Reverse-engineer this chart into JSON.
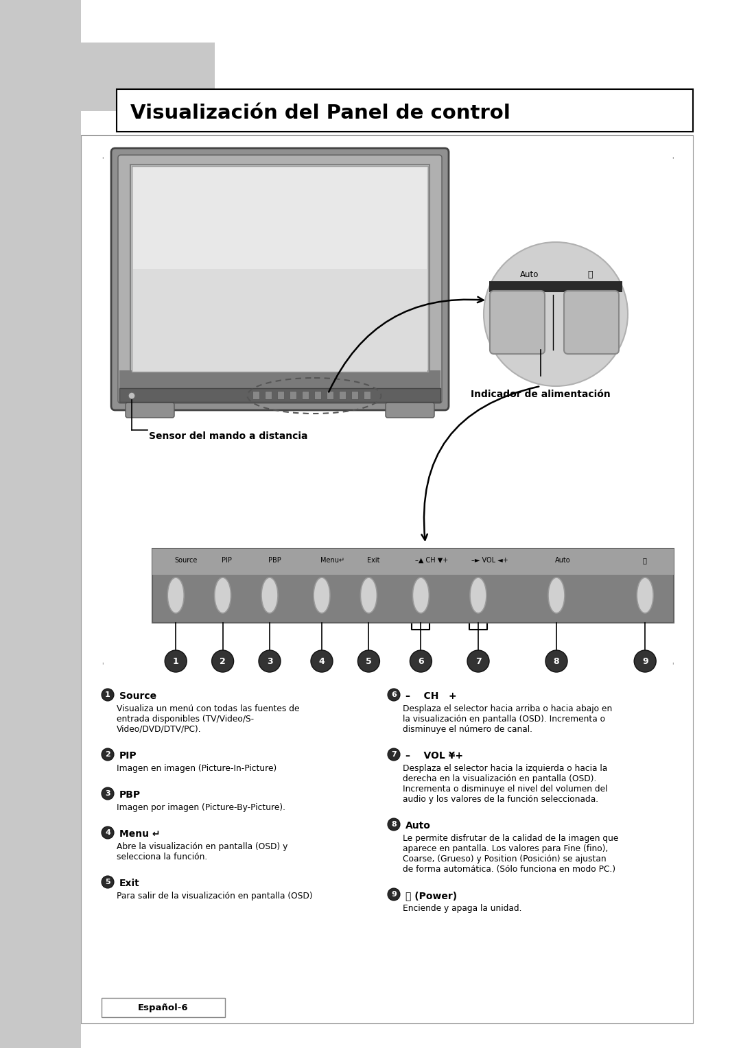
{
  "title": "Visualización del Panel de control",
  "bg_color": "#ffffff",
  "sidebar_color": "#c8c8c8",
  "items_left": [
    {
      "num": "1",
      "label": "Source",
      "desc": "Visualiza un menú con todas las fuentes de\nentrada disponibles (TV/Video/S-\nVideo/DVD/DTV/PC)."
    },
    {
      "num": "2",
      "label": "PIP",
      "desc": "Imagen en imagen (Picture-In-Picture)"
    },
    {
      "num": "3",
      "label": "PBP",
      "desc": "Imagen por imagen (Picture-By-Picture)."
    },
    {
      "num": "4",
      "label": "Menu ↵",
      "desc": "Abre la visualización en pantalla (OSD) y\nselecciona la función."
    },
    {
      "num": "5",
      "label": "Exit",
      "desc": "Para salir de la visualización en pantalla (OSD)"
    }
  ],
  "items_right": [
    {
      "num": "6",
      "label": "–    CH   +",
      "desc": "Desplaza el selector hacia arriba o hacia abajo en\nla visualización en pantalla (OSD). Incrementa o\ndisminuye el número de canal."
    },
    {
      "num": "7",
      "label": "–    VOL ¥+",
      "desc": "Desplaza el selector hacia la izquierda o hacia la\nderecha en la visualización en pantalla (OSD).\nIncrementa o disminuye el nivel del volumen del\naudio y los valores de la función seleccionada."
    },
    {
      "num": "8",
      "label": "Auto",
      "desc": "Le permite disfrutar de la calidad de la imagen que\naparece en pantalla. Los valores para Fine (fino),\nCoarse, (Grueso) y Position (Posición) se ajustan\nde forma automática. (Sólo funciona en modo PC.)"
    },
    {
      "num": "9",
      "label": "⏻ (Power)",
      "desc": "Enciende y apaga la unidad."
    }
  ],
  "label_sensor": "Sensor del mando a distancia",
  "label_indicator": "Indicador de alimentación",
  "footer_text": "Español-6",
  "button_labels_top": [
    "Source",
    "PIP",
    "PBP",
    "Menu↵",
    "Exit",
    "– ▲ CH ▼+",
    "–► VOL ◄+",
    "Auto",
    "⏻"
  ],
  "button_numbers": [
    "1",
    "2",
    "3",
    "4",
    "5",
    "6",
    "7",
    "8",
    "9"
  ]
}
